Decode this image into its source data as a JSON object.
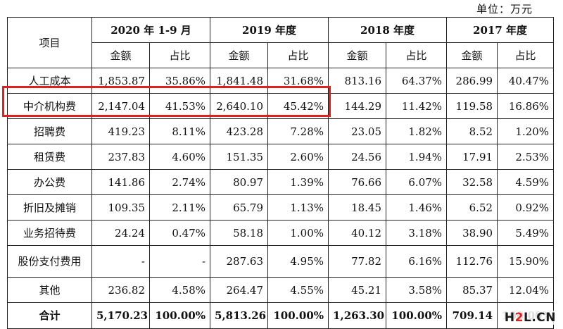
{
  "unit_label": "单位：万元",
  "header": {
    "item": "项目",
    "periods": [
      "2020 年 1-9 月",
      "2019 年度",
      "2018 年度",
      "2017 年度"
    ],
    "amount": "金额",
    "ratio": "占比"
  },
  "rows": [
    {
      "label": "人工成本",
      "values": [
        "1,853.87",
        "35.86%",
        "1,841.48",
        "31.68%",
        "813.16",
        "64.37%",
        "286.99",
        "40.47%"
      ]
    },
    {
      "label": "中介机构费",
      "values": [
        "2,147.04",
        "41.53%",
        "2,640.10",
        "45.42%",
        "144.29",
        "11.42%",
        "119.58",
        "16.86%"
      ]
    },
    {
      "label": "招聘费",
      "values": [
        "419.23",
        "8.11%",
        "423.28",
        "7.28%",
        "23.05",
        "1.82%",
        "8.52",
        "1.20%"
      ]
    },
    {
      "label": "租赁费",
      "values": [
        "237.83",
        "4.60%",
        "151.35",
        "2.60%",
        "24.56",
        "1.94%",
        "17.91",
        "2.53%"
      ]
    },
    {
      "label": "办公费",
      "values": [
        "141.86",
        "2.74%",
        "80.97",
        "1.39%",
        "76.66",
        "6.07%",
        "32.58",
        "4.59%"
      ]
    },
    {
      "label": "折旧及摊销",
      "values": [
        "109.35",
        "2.11%",
        "65.79",
        "1.13%",
        "18.45",
        "1.46%",
        "6.52",
        "0.92%"
      ]
    },
    {
      "label": "业务招待费",
      "values": [
        "24.24",
        "0.47%",
        "58.18",
        "1.00%",
        "40.12",
        "3.18%",
        "38.90",
        "5.49%"
      ]
    },
    {
      "label": "股份支付费用",
      "values": [
        "-",
        "-",
        "287.63",
        "4.95%",
        "77.82",
        "6.16%",
        "112.76",
        "15.90%"
      ]
    },
    {
      "label": "其他",
      "values": [
        "236.82",
        "4.58%",
        "264.47",
        "4.55%",
        "45.21",
        "3.58%",
        "85.37",
        "12.04%"
      ]
    },
    {
      "label": "合计",
      "values": [
        "5,170.23",
        "100.00%",
        "5,813.26",
        "100.00%",
        "1,263.30",
        "100.00%",
        "709.14",
        "100.00%"
      ]
    }
  ],
  "watermark": {
    "h": "H",
    "two": "2",
    "l": "L",
    "dot": ".",
    "cn": "CN"
  },
  "colors": {
    "highlight": "#e02020",
    "border": "#222222"
  }
}
